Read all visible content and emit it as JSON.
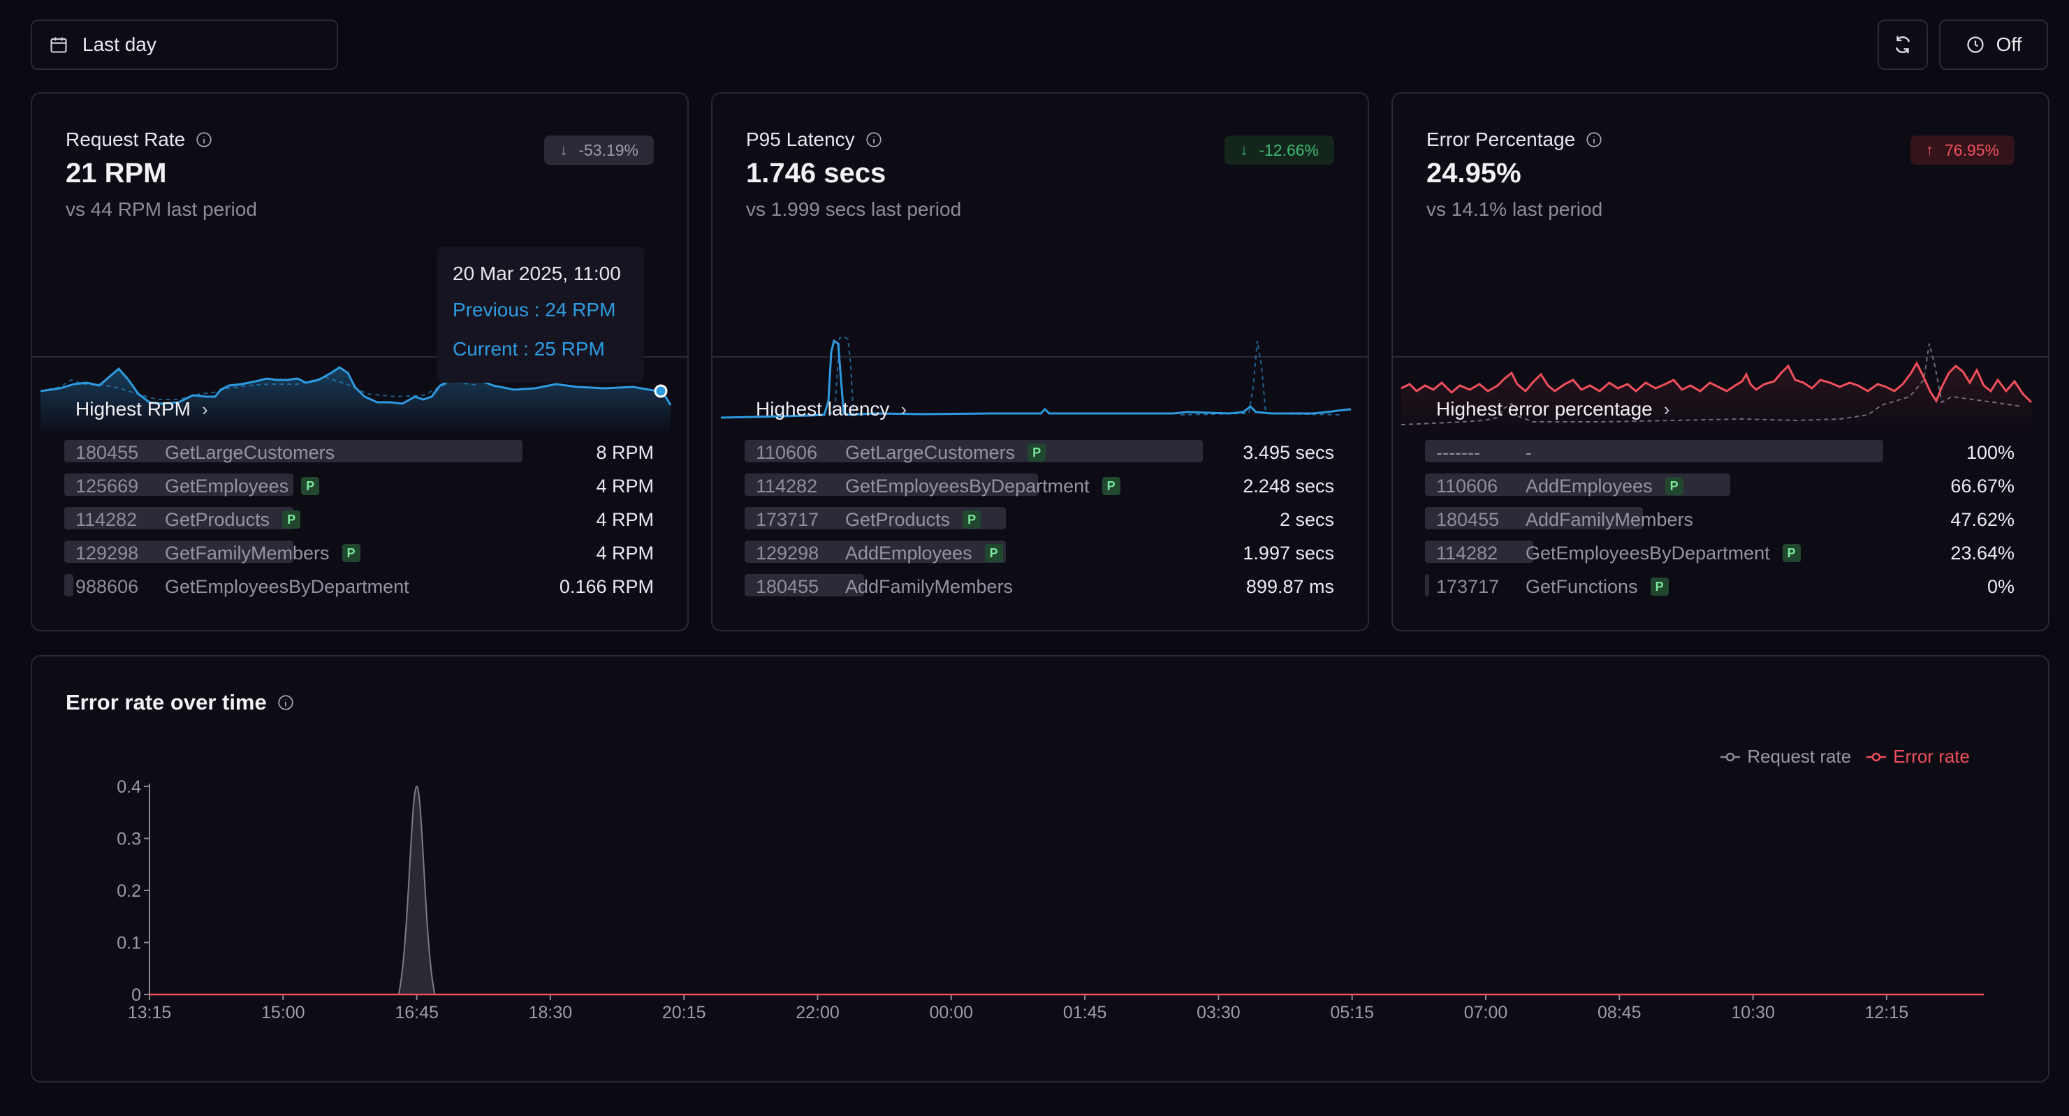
{
  "toolbar": {
    "time_range": "Last day",
    "refresh_icon": "refresh-icon",
    "auto_refresh_label": "Off"
  },
  "cards": [
    {
      "title": "Request Rate",
      "value": "21 RPM",
      "previous": "vs 44 RPM last period",
      "change": "-53.19%",
      "change_direction": "down",
      "list_title": "Highest RPM",
      "color": "#2e9be0",
      "rows": [
        {
          "id": "180455",
          "name": "GetLargeCustomers",
          "value": "8 RPM",
          "badge": "",
          "fill": 1.0
        },
        {
          "id": "125669",
          "name": "GetEmployees",
          "value": "4 RPM",
          "badge": "P",
          "fill": 0.5
        },
        {
          "id": "114282",
          "name": "GetProducts",
          "value": "4 RPM",
          "badge": "P",
          "fill": 0.5
        },
        {
          "id": "129298",
          "name": "GetFamilyMembers",
          "value": "4 RPM",
          "badge": "P",
          "fill": 0.5
        },
        {
          "id": "988606",
          "name": "GetEmployeesByDepartment",
          "value": "0.166 RPM",
          "badge": "",
          "fill": 0.02
        }
      ]
    },
    {
      "title": "P95 Latency",
      "value": "1.746 secs",
      "previous": "vs 1.999 secs last period",
      "change": "-12.66%",
      "change_direction": "down",
      "list_title": "Highest latency",
      "color": "#2e9be0",
      "rows": [
        {
          "id": "110606",
          "name": "GetLargeCustomers",
          "value": "3.495 secs",
          "badge": "P",
          "fill": 1.0
        },
        {
          "id": "114282",
          "name": "GetEmployeesByDepartment",
          "value": "2.248 secs",
          "badge": "P",
          "fill": 0.64
        },
        {
          "id": "173717",
          "name": "GetProducts",
          "value": "2 secs",
          "badge": "P",
          "fill": 0.57
        },
        {
          "id": "129298",
          "name": "AddEmployees",
          "value": "1.997 secs",
          "badge": "P",
          "fill": 0.57
        },
        {
          "id": "180455",
          "name": "AddFamilyMembers",
          "value": "899.87 ms",
          "badge": "",
          "fill": 0.26
        }
      ]
    },
    {
      "title": "Error Percentage",
      "value": "24.95%",
      "previous": "vs 14.1% last period",
      "change": "76.95%",
      "change_direction": "up",
      "list_title": "Highest error percentage",
      "color": "#f0505c",
      "rows": [
        {
          "id": "-------",
          "name": "-",
          "value": "100%",
          "badge": "",
          "fill": 1.0
        },
        {
          "id": "110606",
          "name": "AddEmployees",
          "value": "66.67%",
          "badge": "P",
          "fill": 0.6667
        },
        {
          "id": "180455",
          "name": "AddFamilyMembers",
          "value": "47.62%",
          "badge": "",
          "fill": 0.4762
        },
        {
          "id": "114282",
          "name": "GetEmployeesByDepartment",
          "value": "23.64%",
          "badge": "P",
          "fill": 0.2364
        },
        {
          "id": "173717",
          "name": "GetFunctions",
          "value": "0%",
          "badge": "P",
          "fill": 0
        }
      ]
    }
  ],
  "tooltip": {
    "date": "20 Mar 2025, 11:00",
    "previous": "Previous : 24 RPM",
    "current": "Current : 25 RPM"
  },
  "chart_data": {
    "type": "area",
    "title": "Error rate over time",
    "x_tick_labels": [
      "13:15",
      "15:00",
      "16:45",
      "18:30",
      "20:15",
      "22:00",
      "00:00",
      "01:45",
      "03:30",
      "05:15",
      "07:00",
      "08:45",
      "10:30",
      "12:15"
    ],
    "y_tick_labels": [
      "0",
      "0.1",
      "0.2",
      "0.3",
      "0.4"
    ],
    "ylim": [
      0,
      0.4
    ],
    "legend": [
      "Request rate",
      "Error rate"
    ],
    "legend_placement": "top-right",
    "series": [
      {
        "name": "Request rate",
        "color": "#7d7b8a",
        "peak_time": "16:45",
        "peak_value": 0.4
      },
      {
        "name": "Error rate",
        "color": "#f0505c",
        "values_all": 0
      }
    ]
  }
}
